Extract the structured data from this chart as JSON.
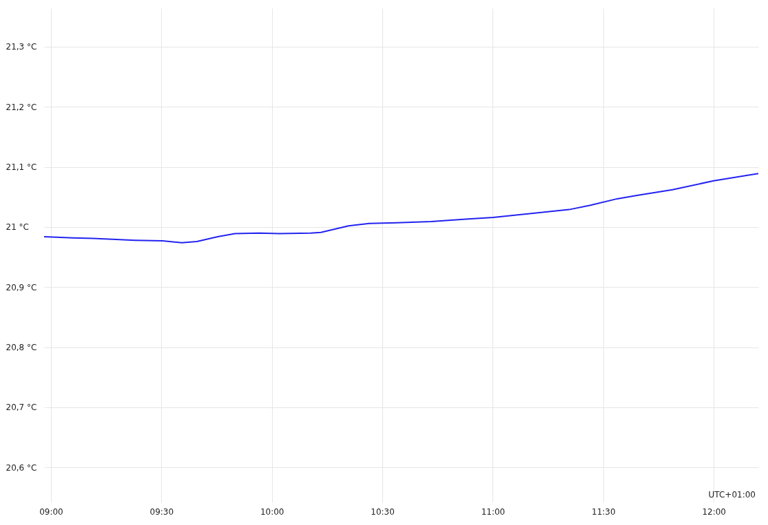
{
  "chart_data": {
    "type": "line",
    "x": [
      8.969,
      9.1,
      9.193,
      9.38,
      9.505,
      9.592,
      9.661,
      9.755,
      9.833,
      9.942,
      10.035,
      10.176,
      10.222,
      10.347,
      10.441,
      10.565,
      10.721,
      10.877,
      11.002,
      11.189,
      11.345,
      11.439,
      11.563,
      11.657,
      11.813,
      12.0,
      12.202
    ],
    "series": [
      {
        "color": "#2222f0",
        "values": [
          20.984,
          20.982,
          20.981,
          20.978,
          20.977,
          20.974,
          20.976,
          20.984,
          20.989,
          20.99,
          20.989,
          20.99,
          20.991,
          21.002,
          21.006,
          21.007,
          21.009,
          21.013,
          21.016,
          21.023,
          21.029,
          21.036,
          21.047,
          21.053,
          21.062,
          21.077,
          21.089
        ]
      }
    ],
    "xlim": [
      8.969,
      12.202
    ],
    "ylim": [
      20.542,
      21.364
    ],
    "xticks": [
      {
        "value": 9,
        "label": "09:00"
      },
      {
        "value": 9.5,
        "label": "09:30"
      },
      {
        "value": 10,
        "label": "10:00"
      },
      {
        "value": 10.5,
        "label": "10:30"
      },
      {
        "value": 11,
        "label": "11:00"
      },
      {
        "value": 11.5,
        "label": "11:30"
      },
      {
        "value": 12,
        "label": "12:00"
      }
    ],
    "yticks": [
      {
        "value": 20.6,
        "label": "20,6 °C"
      },
      {
        "value": 20.7,
        "label": "20,7 °C"
      },
      {
        "value": 20.8,
        "label": "20,8 °C"
      },
      {
        "value": 20.9,
        "label": "20,9 °C"
      },
      {
        "value": 21.0,
        "label": "21 °C"
      },
      {
        "value": 21.1,
        "label": "21,1 °C"
      },
      {
        "value": 21.2,
        "label": "21,2 °C"
      },
      {
        "value": 21.3,
        "label": "21,3 °C"
      }
    ],
    "grid": true,
    "marker": "none",
    "line_style": "solid",
    "annotations": [
      "UTC+01:00"
    ]
  }
}
